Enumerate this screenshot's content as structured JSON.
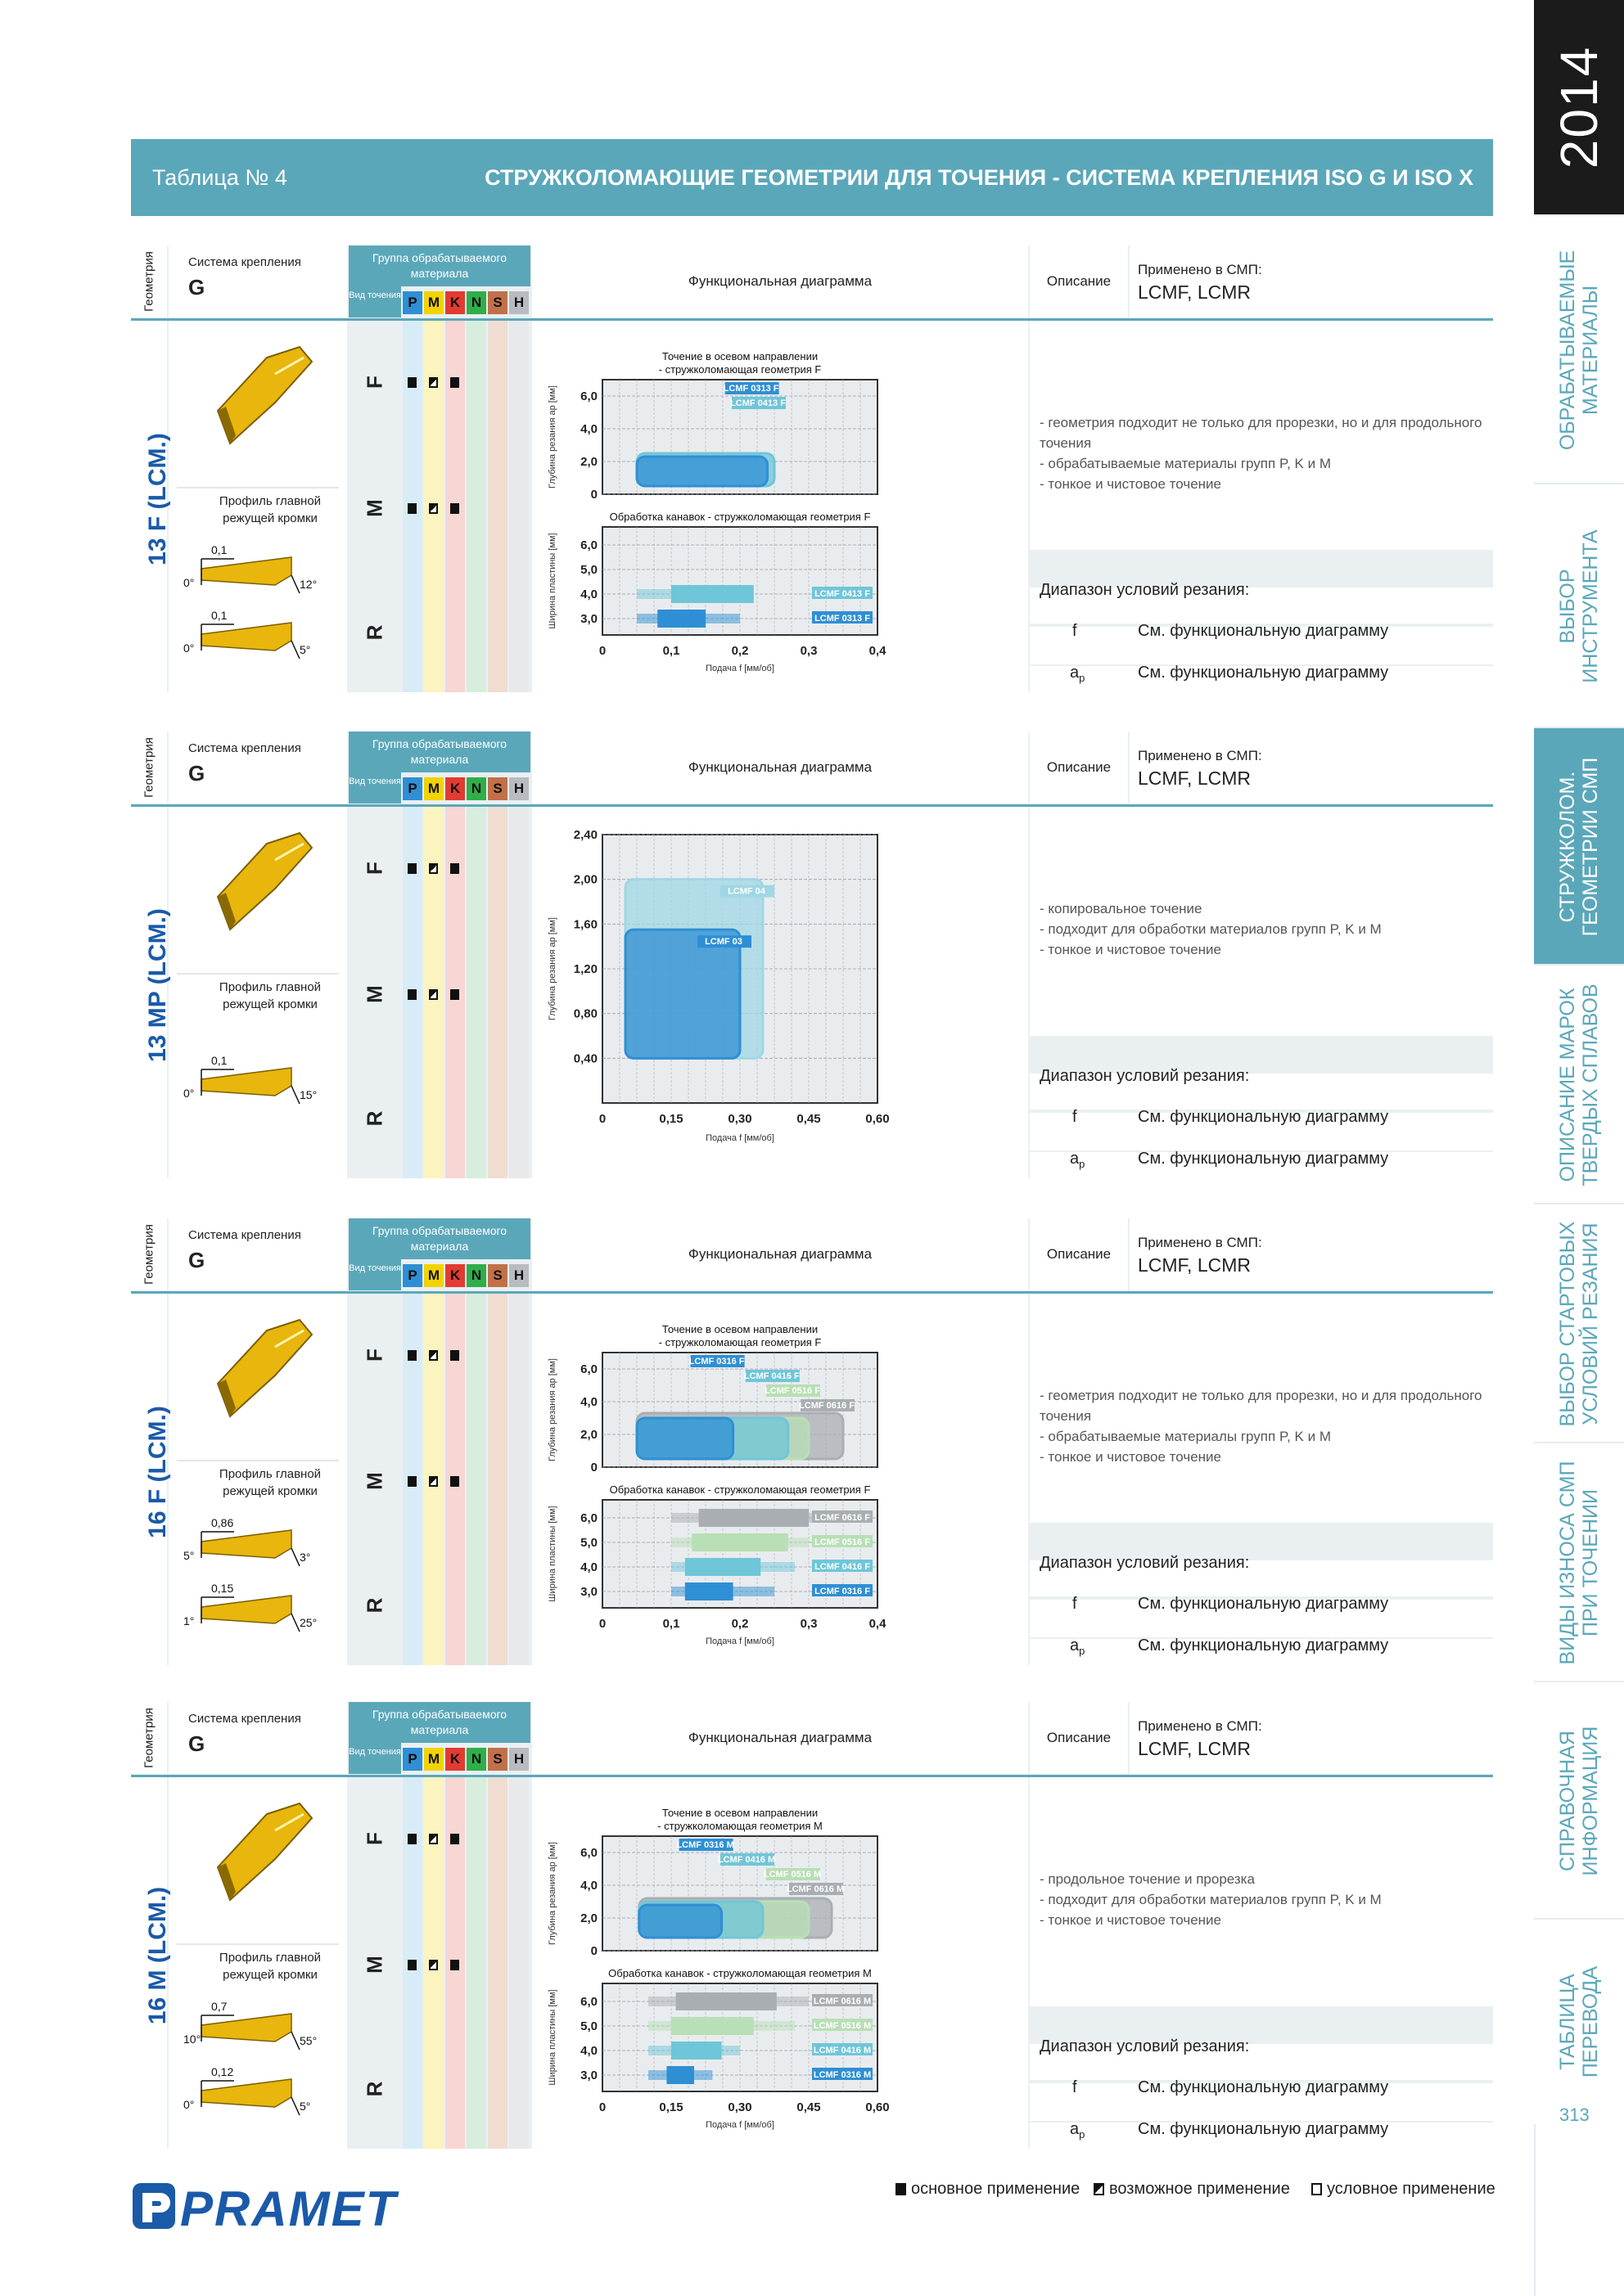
{
  "year": "2014",
  "page_number": "313",
  "sidebar": [
    {
      "label": "ОБРАБАТЫВАЕМЫЕ\nМАТЕРИАЛЫ",
      "active": false
    },
    {
      "label": "ВЫБОР\nИНСТРУМЕНТА",
      "active": false
    },
    {
      "label": "СТРУЖКОЛОМ.\nГЕОМЕТРИИ СМП",
      "active": true
    },
    {
      "label": "ОПИСАНИЕ МАРОК\nТВЕРДЫХ СПЛАВОВ",
      "active": false
    },
    {
      "label": "ВЫБОР СТАРТОВЫХ\nУСЛОВИЙ РЕЗАНИЯ",
      "active": false
    },
    {
      "label": "ВИДЫ ИЗНОСА СМП\nПРИ ТОЧЕНИИ",
      "active": false
    },
    {
      "label": "СПРАВОЧНАЯ\nИНФОРМАЦИЯ",
      "active": false
    },
    {
      "label": "ТАБЛИЦА\nПЕРЕВОДА",
      "active": false
    }
  ],
  "header": {
    "left": "Таблица № 4",
    "right": "СТРУЖКОЛОМАЮЩИЕ ГЕОМЕТРИИ ДЛЯ ТОЧЕНИЯ - СИСТЕМА КРЕПЛЕНИЯ ISO G И ISO X"
  },
  "labels": {
    "geometry": "Геометрия",
    "system": "Система крепления",
    "group": "Группа обрабатываемого материала",
    "vid": "Вид точения",
    "func_diagram": "Функциональная диаграмма",
    "opisanie": "Описание",
    "applied": "Применено в СМП:",
    "range": "Диапазон условий резания:",
    "f": "f",
    "ap": "a",
    "ap_sub": "p",
    "see": "См. функциональную диаграмму",
    "profile": "Профиль главной режущей кромки",
    "feed": "Подача f [мм/об]",
    "depth": "Глубина резания a",
    "depth_unit": "[мм]",
    "width": "Ширина пластины [мм]"
  },
  "materials": [
    {
      "code": "P",
      "color": "#2f8fd4",
      "band": "#d8ecf8"
    },
    {
      "code": "M",
      "color": "#f2d300",
      "band": "#fbf4c0"
    },
    {
      "code": "K",
      "color": "#e23b32",
      "band": "#f8d6d3"
    },
    {
      "code": "N",
      "color": "#2fae4a",
      "band": "#d6eedb"
    },
    {
      "code": "S",
      "color": "#c1704a",
      "band": "#f0ddd2"
    },
    {
      "code": "H",
      "color": "#b8bcc0",
      "band": "#e8e9ea"
    }
  ],
  "sections": [
    {
      "code": "13 F (LCM.)",
      "system": "G",
      "smp": "LCMF, LCMR",
      "marks": {
        "F": [
          "full",
          "half",
          "full"
        ],
        "M": [
          "full",
          "half",
          "full"
        ],
        "R": []
      },
      "desc": [
        "геометрия подходит не только для прорезки, но и для продольного точения",
        "обрабатываемые материалы групп P, K и M",
        "тонкое и чистовое точение"
      ],
      "angles": [
        "0,1",
        "0°",
        "12°",
        "0,1",
        "0°",
        "5°"
      ]
    },
    {
      "code": "13 MP (LCM.)",
      "system": "G",
      "smp": "LCMF, LCMR",
      "marks": {
        "F": [
          "full",
          "half",
          "full"
        ],
        "M": [
          "full",
          "half",
          "full"
        ],
        "R": []
      },
      "desc": [
        "копировальное точение",
        "подходит для обработки материалов групп P, K и M",
        "тонкое и чистовое точение"
      ],
      "angles": [
        "0,1",
        "0°",
        "15°"
      ]
    },
    {
      "code": "16 F (LCM.)",
      "system": "G",
      "smp": "LCMF, LCMR",
      "marks": {
        "F": [
          "full",
          "half",
          "full"
        ],
        "M": [
          "full",
          "half",
          "full"
        ],
        "R": []
      },
      "desc": [
        "геометрия подходит не только для прорезки, но и для продольного точения",
        "обрабатываемые материалы групп P, K и M",
        "тонкое и чистовое точение"
      ],
      "angles": [
        "0,86",
        "5°",
        "3°",
        "0,15",
        "1°",
        "25°"
      ]
    },
    {
      "code": "16 M (LCM.)",
      "system": "G",
      "smp": "LCMF, LCMR",
      "marks": {
        "F": [
          "full",
          "half",
          "full"
        ],
        "M": [
          "full",
          "half",
          "full"
        ],
        "R": []
      },
      "desc": [
        "продольное точение и прорезка",
        "подходит для обработки материалов групп P, K и M",
        "тонкое и чистовое точение"
      ],
      "angles": [
        "0,7",
        "10°",
        "55°",
        "0,12",
        "0°",
        "5°"
      ]
    }
  ],
  "chart_data": [
    {
      "type": "area",
      "title": "Точение в осевом направлении - стружколомающая геометрия F",
      "ylabel": "Глубина резания ap [мм]",
      "yticks": [
        "0",
        "2,0",
        "4,0",
        "6,0"
      ],
      "ylim": [
        0,
        7
      ],
      "xlim": [
        0,
        0.4
      ],
      "regions": [
        {
          "name": "LCMF 0413 F",
          "x": [
            0.05,
            0.25
          ],
          "y": [
            0.5,
            2.5
          ],
          "color": "#6fc6d8"
        },
        {
          "name": "LCMF 0313 F",
          "x": [
            0.05,
            0.24
          ],
          "y": [
            0.5,
            2.3
          ],
          "color": "#2f8fd4"
        }
      ]
    },
    {
      "type": "bar",
      "title": "Обработка канавок - стружколомающая геометрия F",
      "ylabel": "Ширина пластины [мм]",
      "xlabel": "Подача f [мм/об]",
      "yticks": [
        "3,0",
        "4,0",
        "5,0",
        "6,0"
      ],
      "xticks": [
        "0",
        "0,1",
        "0,2",
        "0,3",
        "0,4"
      ],
      "xlim": [
        0,
        0.4
      ],
      "bars": [
        {
          "name": "LCMF 0413 F",
          "width": 4.0,
          "x": [
            0.05,
            0.22
          ],
          "core": [
            0.1,
            0.22
          ],
          "color": "#6fc6d8"
        },
        {
          "name": "LCMF 0313 F",
          "width": 3.0,
          "x": [
            0.05,
            0.2
          ],
          "core": [
            0.08,
            0.15
          ],
          "color": "#2f8fd4"
        }
      ]
    },
    {
      "type": "area",
      "ylabel": "Глубина резания ap [мм]",
      "xlabel": "Подача f [мм/об]",
      "yticks": [
        "0,40",
        "0,80",
        "1,20",
        "1,60",
        "2,00",
        "2,40"
      ],
      "xticks": [
        "0",
        "0,15",
        "0,30",
        "0,45",
        "0,60"
      ],
      "ylim": [
        0,
        2.4
      ],
      "xlim": [
        0,
        0.6
      ],
      "regions": [
        {
          "name": "LCMF 04",
          "x": [
            0.05,
            0.35
          ],
          "y": [
            0.4,
            2.0
          ],
          "color": "#9fd7e4"
        },
        {
          "name": "LCMF 03",
          "x": [
            0.05,
            0.3
          ],
          "y": [
            0.4,
            1.55
          ],
          "color": "#2f8fd4"
        }
      ]
    },
    {
      "type": "area",
      "title": "Точение в осевом направлении - стружколомающая геометрия F",
      "ylabel": "Глубина резания ap [мм]",
      "yticks": [
        "0",
        "2,0",
        "4,0",
        "6,0"
      ],
      "ylim": [
        0,
        7
      ],
      "xlim": [
        0,
        0.4
      ],
      "regions": [
        {
          "name": "LCMF 0616 F",
          "x": [
            0.05,
            0.35
          ],
          "y": [
            0.5,
            3.3
          ],
          "color": "#a9aeb3"
        },
        {
          "name": "LCMF 0516 F",
          "x": [
            0.05,
            0.3
          ],
          "y": [
            0.5,
            3.0
          ],
          "color": "#b8dfb5"
        },
        {
          "name": "LCMF 0416 F",
          "x": [
            0.05,
            0.27
          ],
          "y": [
            0.5,
            3.0
          ],
          "color": "#6fc6d8"
        },
        {
          "name": "LCMF 0316 F",
          "x": [
            0.05,
            0.19
          ],
          "y": [
            0.5,
            3.0
          ],
          "color": "#2f8fd4"
        }
      ]
    },
    {
      "type": "bar",
      "title": "Обработка канавок - стружколомающая геометрия F",
      "ylabel": "Ширина пластины [мм]",
      "xlabel": "Подача f [мм/об]",
      "yticks": [
        "3,0",
        "4,0",
        "5,0",
        "6,0"
      ],
      "xticks": [
        "0",
        "0,1",
        "0,2",
        "0,3",
        "0,4"
      ],
      "xlim": [
        0,
        0.4
      ],
      "bars": [
        {
          "name": "LCMF 0616 F",
          "width": 6.0,
          "x": [
            0.1,
            0.33
          ],
          "core": [
            0.14,
            0.3
          ],
          "color": "#a9aeb3"
        },
        {
          "name": "LCMF 0516 F",
          "width": 5.0,
          "x": [
            0.1,
            0.3
          ],
          "core": [
            0.13,
            0.27
          ],
          "color": "#b8dfb5"
        },
        {
          "name": "LCMF 0416 F",
          "width": 4.0,
          "x": [
            0.1,
            0.28
          ],
          "core": [
            0.12,
            0.23
          ],
          "color": "#6fc6d8"
        },
        {
          "name": "LCMF 0316 F",
          "width": 3.0,
          "x": [
            0.1,
            0.25
          ],
          "core": [
            0.12,
            0.19
          ],
          "color": "#2f8fd4"
        }
      ]
    },
    {
      "type": "area",
      "title": "Точение в осевом направлении - стружколомающая геометрия M",
      "ylabel": "Глубина резания ap [мм]",
      "yticks": [
        "0",
        "2,0",
        "4,0",
        "6,0"
      ],
      "ylim": [
        0,
        7
      ],
      "xlim": [
        0,
        0.6
      ],
      "regions": [
        {
          "name": "LCMF 0616 M",
          "x": [
            0.08,
            0.5
          ],
          "y": [
            0.8,
            3.2
          ],
          "color": "#a9aeb3"
        },
        {
          "name": "LCMF 0516 M",
          "x": [
            0.08,
            0.45
          ],
          "y": [
            0.8,
            3.0
          ],
          "color": "#b8dfb5"
        },
        {
          "name": "LCMF 0416 M",
          "x": [
            0.08,
            0.35
          ],
          "y": [
            0.8,
            3.0
          ],
          "color": "#6fc6d8"
        },
        {
          "name": "LCMF 0316 M",
          "x": [
            0.08,
            0.26
          ],
          "y": [
            0.8,
            2.8
          ],
          "color": "#2f8fd4"
        }
      ]
    },
    {
      "type": "bar",
      "title": "Обработка канавок - стружколомающая геометрия M",
      "ylabel": "Ширина пластины [мм]",
      "xlabel": "Подача f [мм/об]",
      "yticks": [
        "3,0",
        "4,0",
        "5,0",
        "6,0"
      ],
      "xticks": [
        "0",
        "0,15",
        "0,30",
        "0,45",
        "0,60"
      ],
      "xlim": [
        0,
        0.6
      ],
      "bars": [
        {
          "name": "LCMF 0616 M",
          "width": 6.0,
          "x": [
            0.1,
            0.45
          ],
          "core": [
            0.16,
            0.38
          ],
          "color": "#a9aeb3"
        },
        {
          "name": "LCMF 0516 M",
          "width": 5.0,
          "x": [
            0.1,
            0.42
          ],
          "core": [
            0.15,
            0.33
          ],
          "color": "#b8dfb5"
        },
        {
          "name": "LCMF 0416 M",
          "width": 4.0,
          "x": [
            0.1,
            0.3
          ],
          "core": [
            0.15,
            0.26
          ],
          "color": "#6fc6d8"
        },
        {
          "name": "LCMF 0316 M",
          "width": 3.0,
          "x": [
            0.1,
            0.24
          ],
          "core": [
            0.14,
            0.2
          ],
          "color": "#2f8fd4"
        }
      ]
    }
  ],
  "legend": {
    "main": "основное применение",
    "possible": "возможное применение",
    "conditional": "условное применение"
  },
  "brand": "PRAMET"
}
